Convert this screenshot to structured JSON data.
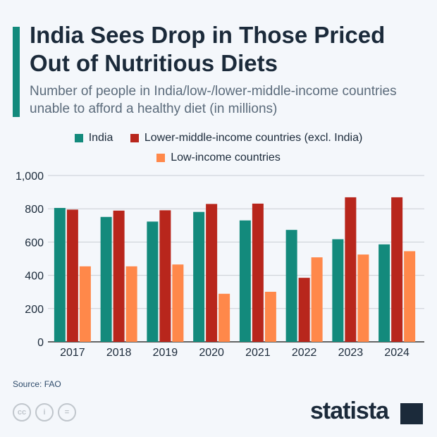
{
  "title": "India Sees Drop in Those Priced Out of Nutritious Diets",
  "subtitle": "Number of people in India/low-/lower-middle-income countries unable to afford a healthy diet (in millions)",
  "source": "Source: FAO",
  "brand": "statista",
  "chart_data": {
    "type": "bar",
    "categories": [
      "2017",
      "2018",
      "2019",
      "2020",
      "2021",
      "2022",
      "2023",
      "2024"
    ],
    "series": [
      {
        "name": "India",
        "color": "#138a7c",
        "values": [
          805,
          751,
          723,
          781,
          730,
          673,
          617,
          586
        ]
      },
      {
        "name": "Lower-middle-income countries (excl. India)",
        "color": "#b8261c",
        "values": [
          795,
          789,
          791,
          829,
          831,
          385,
          869,
          869
        ]
      },
      {
        "name": "Low-income countries",
        "color": "#ff884a",
        "values": [
          454,
          454,
          465,
          289,
          301,
          508,
          525,
          545
        ]
      }
    ],
    "ylim": [
      0,
      1000
    ],
    "yticks": [
      "0",
      "200",
      "400",
      "600",
      "800",
      "1,000"
    ],
    "grid": true,
    "legend": "top"
  }
}
